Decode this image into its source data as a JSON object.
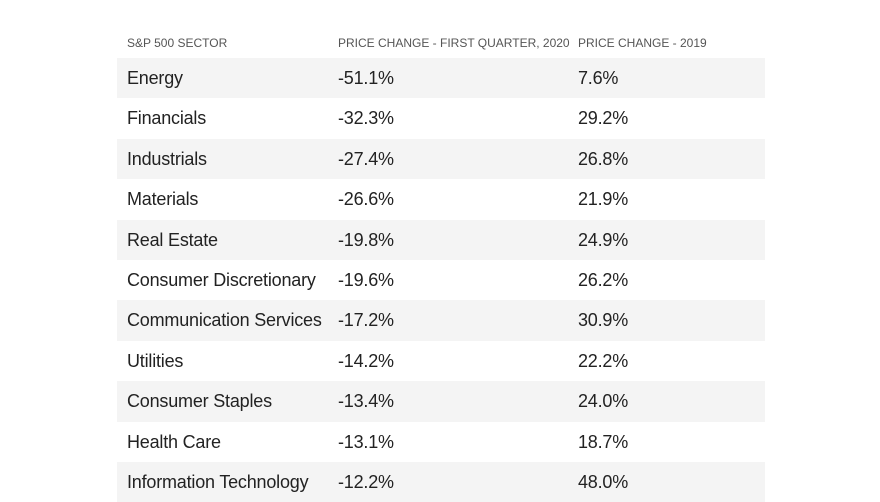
{
  "table": {
    "header": [
      "S&P 500 SECTOR",
      "PRICE CHANGE - FIRST QUARTER, 2020",
      "PRICE CHANGE - 2019"
    ],
    "rows": [
      [
        "Energy",
        "-51.1%",
        "7.6%"
      ],
      [
        "Financials",
        "-32.3%",
        "29.2%"
      ],
      [
        "Industrials",
        "-27.4%",
        "26.8%"
      ],
      [
        "Materials",
        "-26.6%",
        "21.9%"
      ],
      [
        "Real Estate",
        "-19.8%",
        "24.9%"
      ],
      [
        "Consumer Discretionary",
        "-19.6%",
        "26.2%"
      ],
      [
        "Communication Services",
        "-17.2%",
        "30.9%"
      ],
      [
        "Utilities",
        "-14.2%",
        "22.2%"
      ],
      [
        "Consumer Staples",
        "-13.4%",
        "24.0%"
      ],
      [
        "Health Care",
        "-13.1%",
        "18.7%"
      ],
      [
        "Information Technology",
        "-12.2%",
        "48.0%"
      ]
    ]
  }
}
